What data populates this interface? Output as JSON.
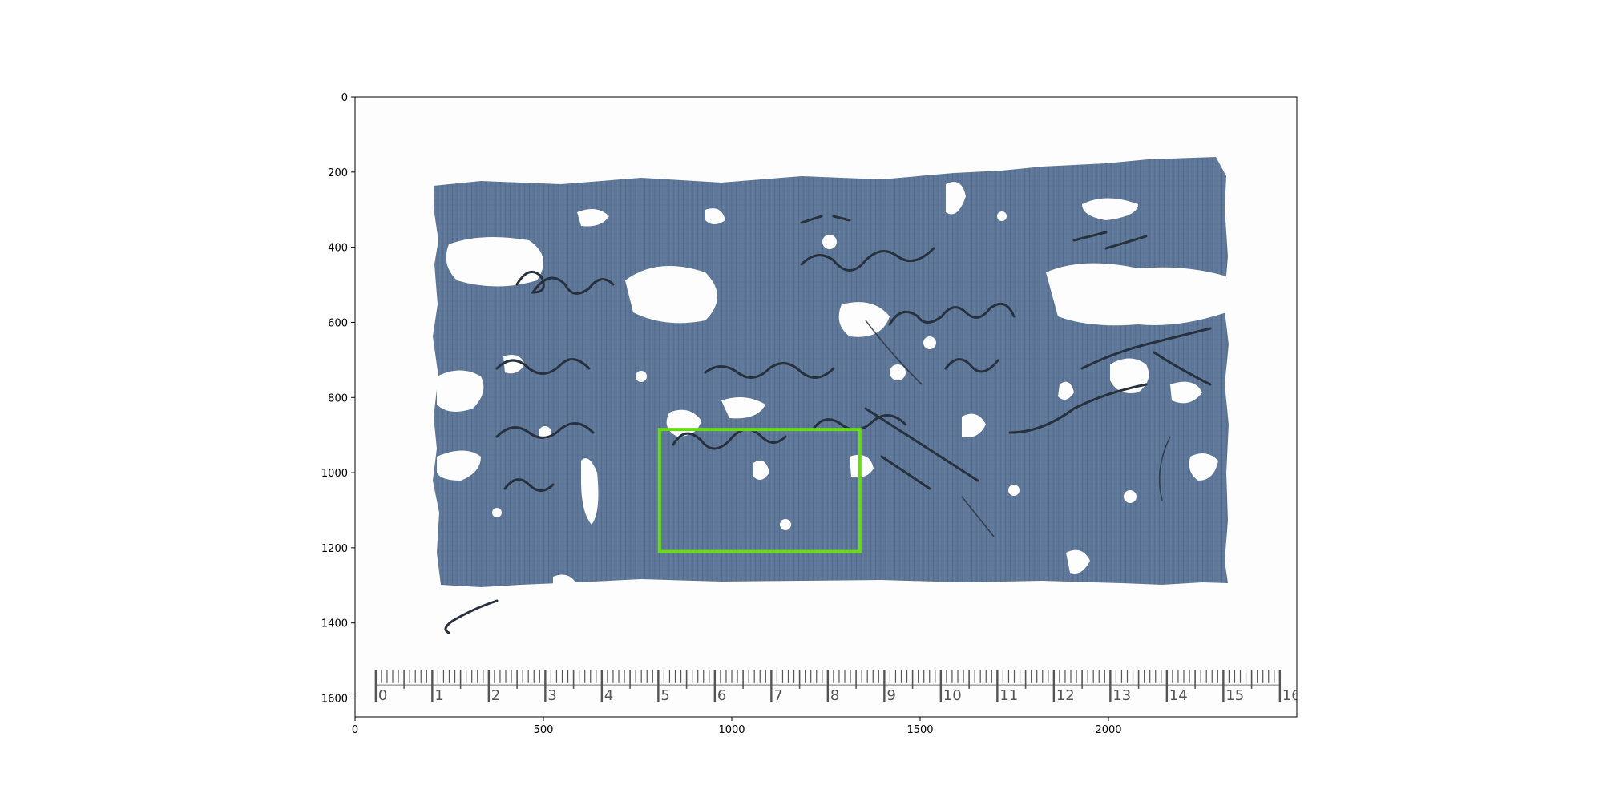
{
  "figure": {
    "x_axis": {
      "range": [
        0,
        2500
      ],
      "ticks": [
        "0",
        "500",
        "1000",
        "1500",
        "2000"
      ],
      "tick_values": [
        0,
        500,
        1000,
        1500,
        2000
      ]
    },
    "y_axis": {
      "range": [
        1650,
        0
      ],
      "ticks": [
        "0",
        "200",
        "400",
        "600",
        "800",
        "1000",
        "1200",
        "1400",
        "1600"
      ],
      "tick_values": [
        0,
        200,
        400,
        600,
        800,
        1000,
        1200,
        1400,
        1600
      ]
    }
  },
  "image": {
    "subject": "papyrus fragment",
    "papyrus_color": "#5e7698",
    "ink_color": "#27303d",
    "background_color": "#fdfdfd"
  },
  "ruler": {
    "labels": [
      "0",
      "1",
      "2",
      "3",
      "4",
      "5",
      "6",
      "7",
      "8",
      "9",
      "10",
      "11",
      "12",
      "13",
      "14",
      "15",
      "16"
    ]
  },
  "highlight_box": {
    "color": "#66dd11",
    "x_range": [
      808,
      1340
    ],
    "y_range": [
      885,
      1210
    ]
  }
}
